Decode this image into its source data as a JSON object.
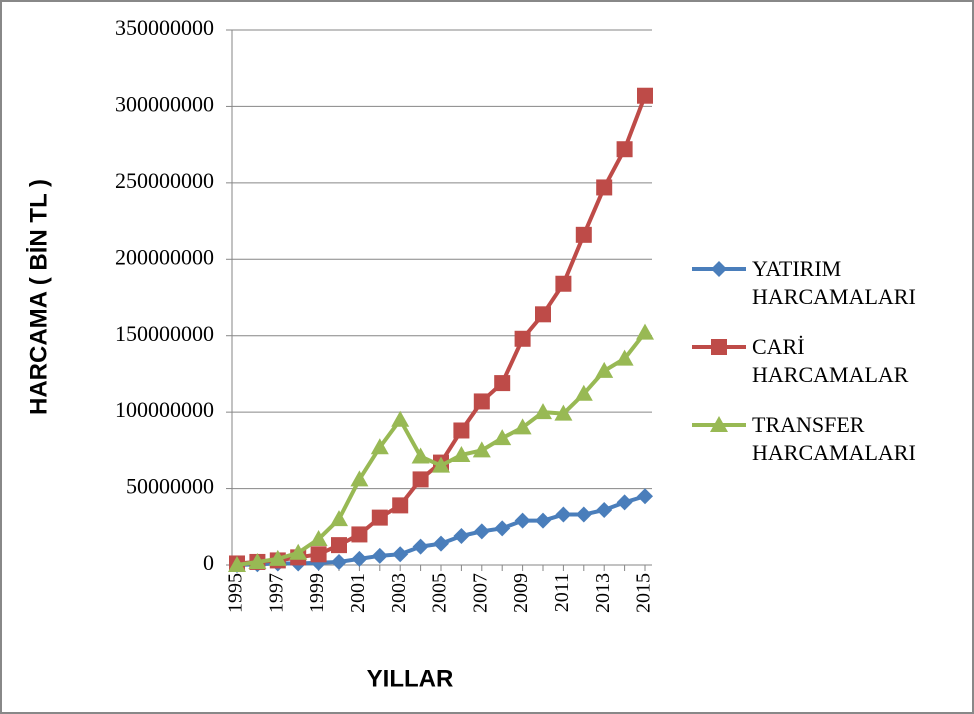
{
  "chart_data": {
    "type": "line",
    "xlabel": "YILLAR",
    "ylabel": "HARCAMA ( BİN TL )",
    "categories": [
      "1995",
      null,
      "1997",
      null,
      "1999",
      null,
      "2001",
      null,
      "2003",
      null,
      "2005",
      null,
      "2007",
      null,
      "2009",
      null,
      "2011",
      null,
      "2013",
      null,
      "2015"
    ],
    "ylim": [
      0,
      350000000
    ],
    "yticks": [
      0,
      50000000,
      100000000,
      150000000,
      200000000,
      250000000,
      300000000,
      350000000
    ],
    "grid": true,
    "legend": "right",
    "series": [
      {
        "name": "YATIRIM HARCAMALARI",
        "color": "#4a7ebb",
        "marker": "diamond",
        "values": [
          0,
          500000,
          1000000,
          1000000,
          1500000,
          2000000,
          4000000,
          6000000,
          7000000,
          12000000,
          14000000,
          19000000,
          22000000,
          24000000,
          29000000,
          29000000,
          33000000,
          33000000,
          36000000,
          41000000,
          45000000
        ]
      },
      {
        "name": "CARİ HARCAMALAR",
        "color": "#be4b48",
        "marker": "square",
        "values": [
          1000000,
          2000000,
          3000000,
          5000000,
          7000000,
          13000000,
          20000000,
          31000000,
          39000000,
          56000000,
          67000000,
          88000000,
          107000000,
          119000000,
          148000000,
          164000000,
          184000000,
          216000000,
          247000000,
          272000000,
          307000000
        ]
      },
      {
        "name": "TRANSFER HARCAMALARI",
        "color": "#98b954",
        "marker": "triangle",
        "values": [
          0,
          2000000,
          4000000,
          8000000,
          17000000,
          30000000,
          56000000,
          77000000,
          95000000,
          71000000,
          65000000,
          72000000,
          75000000,
          83000000,
          90000000,
          100000000,
          99000000,
          112000000,
          127000000,
          135000000,
          152000000
        ]
      }
    ]
  }
}
